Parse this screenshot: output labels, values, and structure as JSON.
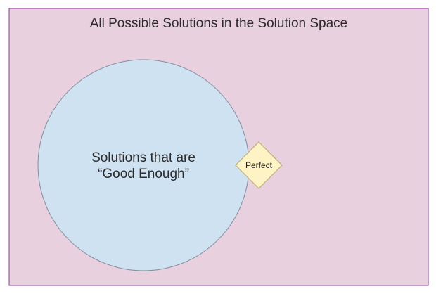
{
  "solution_space": {
    "label": "All Possible Solutions in the Solution Space",
    "fill": "#e9d0df",
    "stroke": "#8a3a9a"
  },
  "good_enough": {
    "label_line1": "Solutions that are",
    "label_line2": "“Good Enough”",
    "fill": "#cfe2f1",
    "stroke": "#7e8e9c"
  },
  "perfect": {
    "label": "Perfect",
    "fill": "#fdf3c4",
    "stroke": "#b9a96a"
  }
}
